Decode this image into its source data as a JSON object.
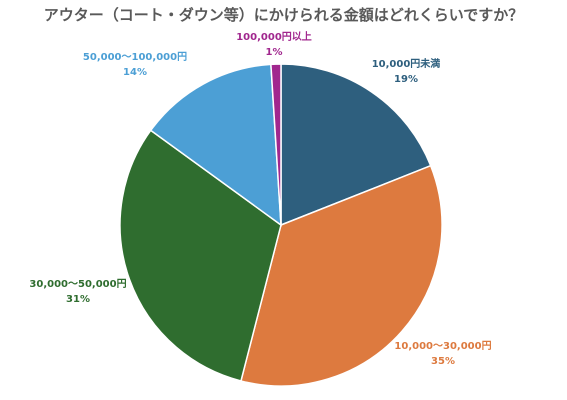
{
  "chart_data": {
    "type": "pie",
    "title": "アウター（コート・ダウン等）にかけられる金額はどれくらいですか？",
    "slices": [
      {
        "label": "10,000円未満",
        "value": 19,
        "value_label": "19%",
        "color": "#2E5F7E"
      },
      {
        "label": "10,000〜30,000円",
        "value": 35,
        "value_label": "35%",
        "color": "#DD7A3F"
      },
      {
        "label": "30,000〜50,000円",
        "value": 31,
        "value_label": "31%",
        "color": "#2F6D2F"
      },
      {
        "label": "50,000〜100,000円",
        "value": 14,
        "value_label": "14%",
        "color": "#4C9FD5"
      },
      {
        "label": "100,000円以上",
        "value": 1,
        "value_label": "1%",
        "color": "#A1278E"
      }
    ],
    "legend": "none"
  }
}
